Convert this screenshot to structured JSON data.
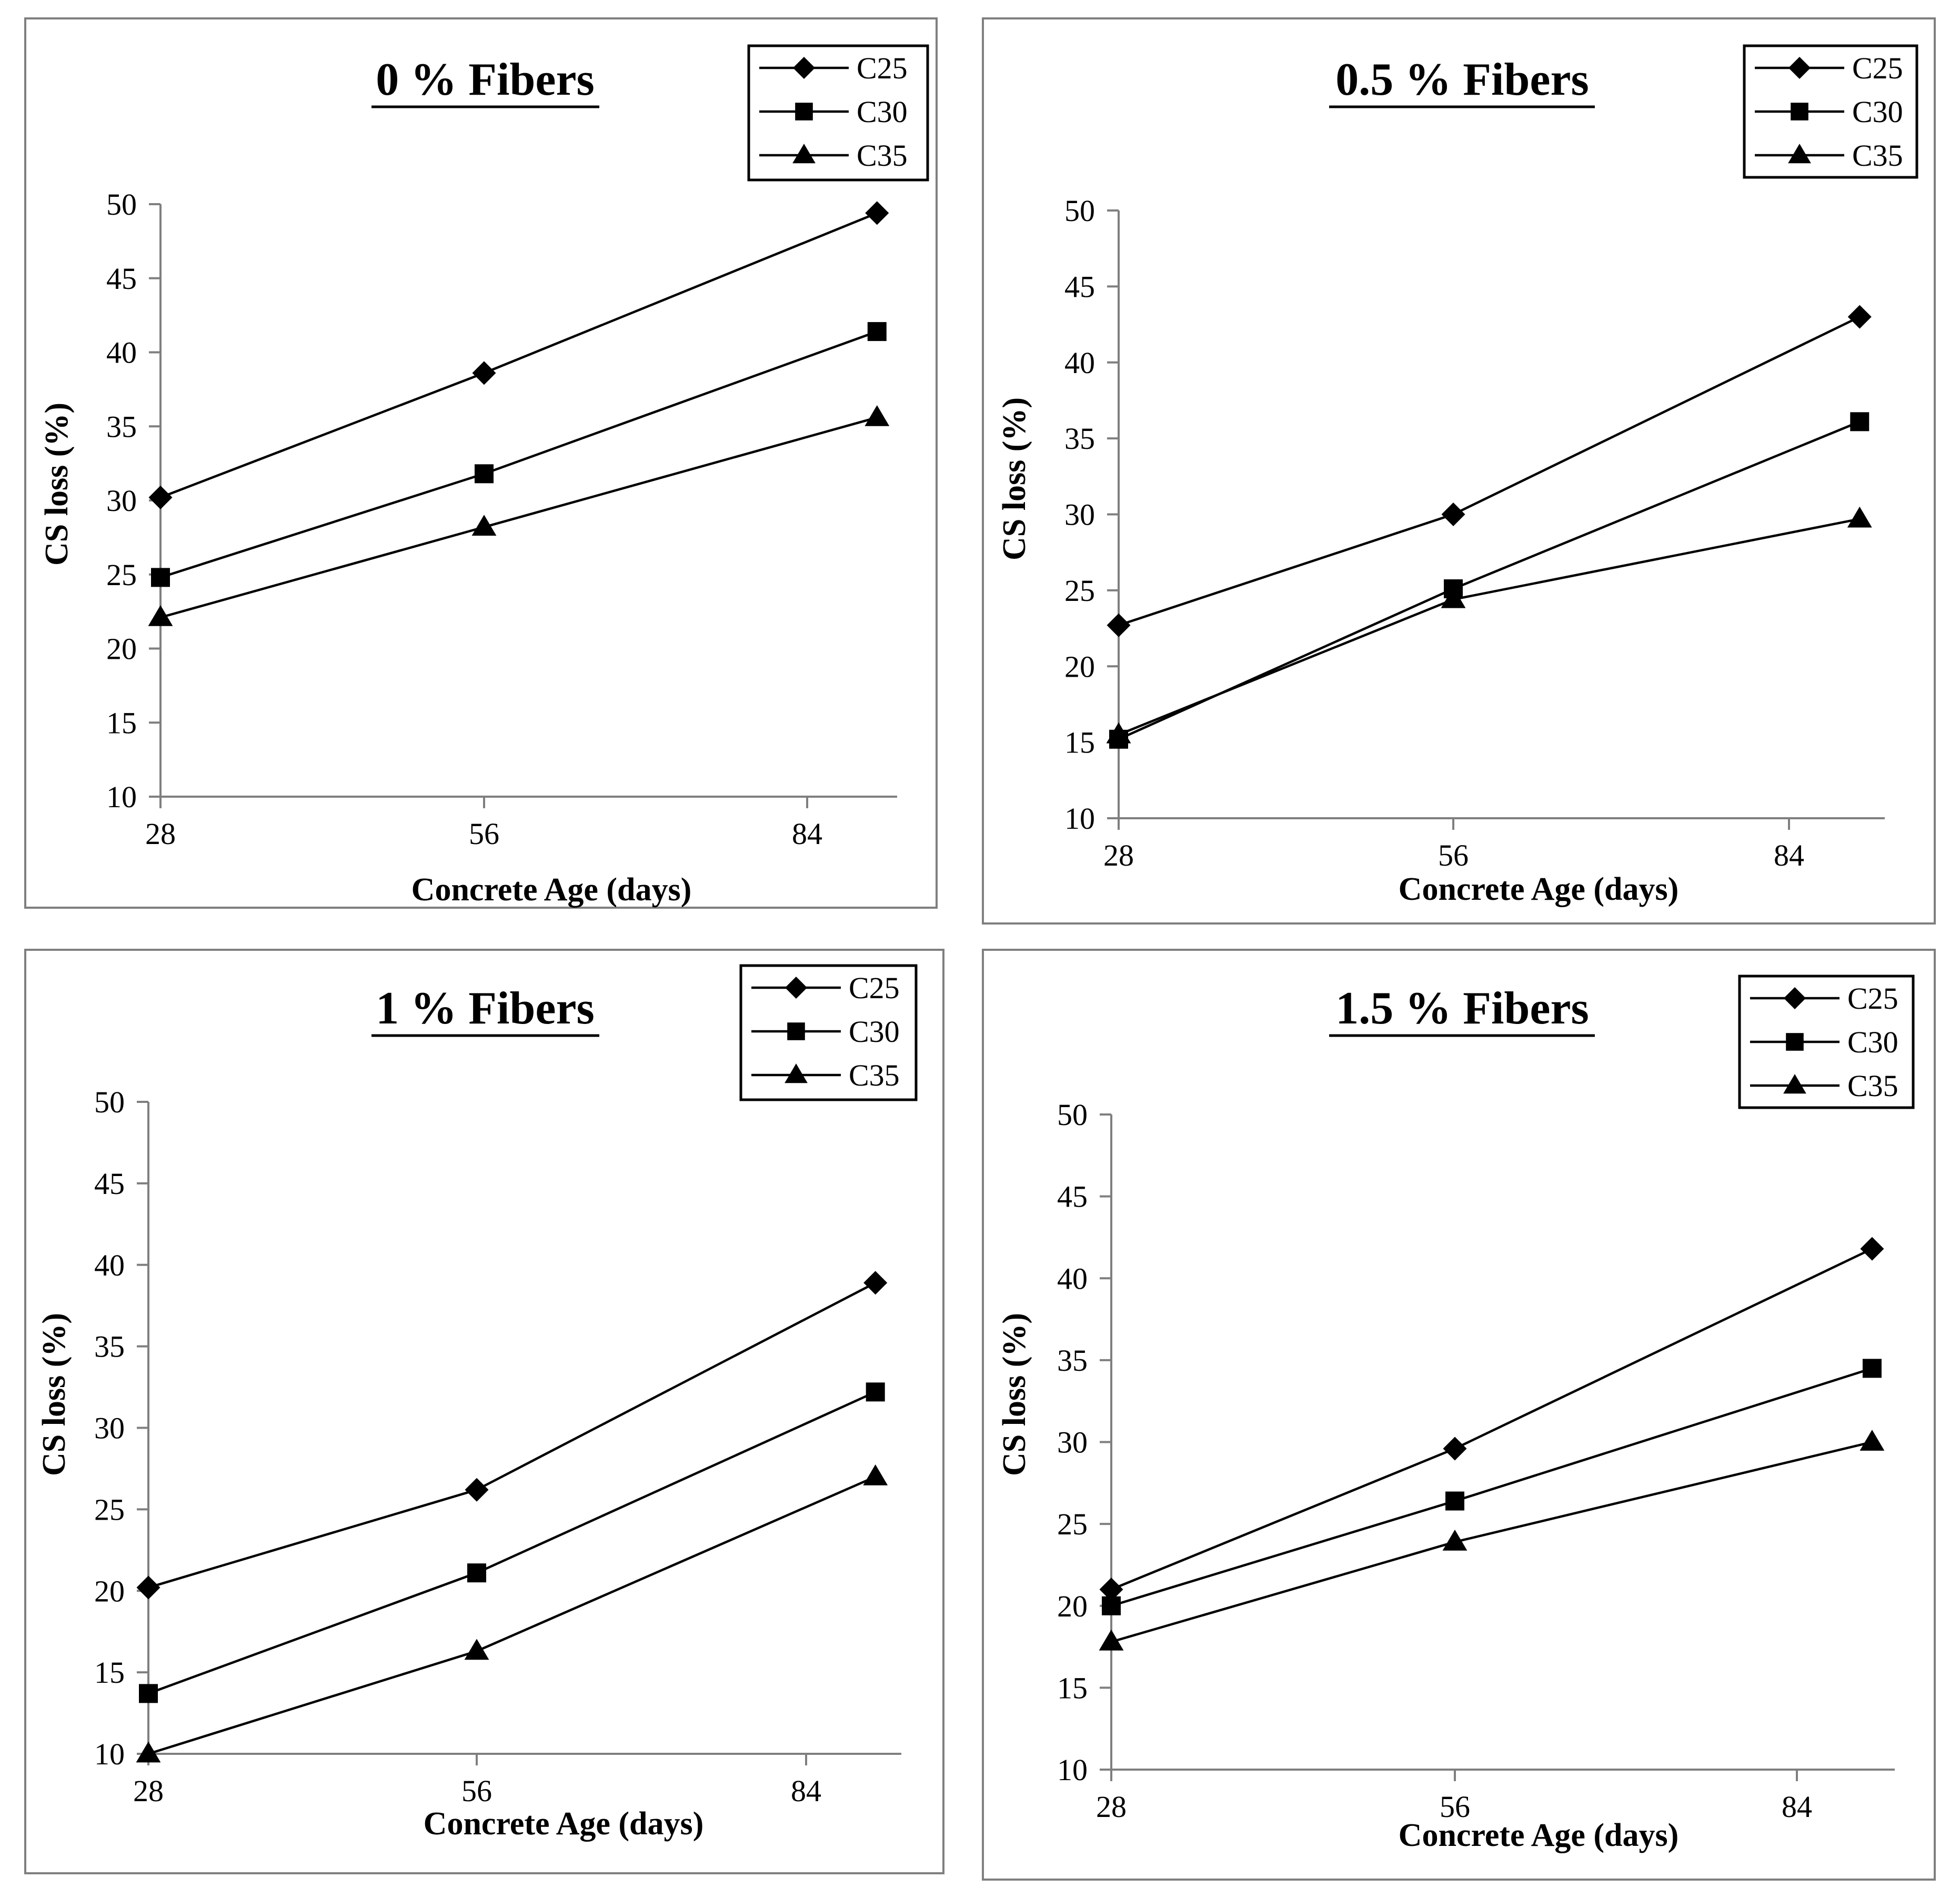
{
  "figure": {
    "panels": [
      "panel_0",
      "panel_05",
      "panel_1",
      "panel_15"
    ]
  },
  "chart_data": [
    {
      "type": "line",
      "title": "0 % Fibers",
      "xlabel": "Concrete Age (days)",
      "ylabel": "CS loss (%)",
      "x": [
        28,
        56,
        90
      ],
      "xticks": [
        "28",
        "56",
        "84"
      ],
      "yticks": [
        "10",
        "15",
        "20",
        "25",
        "30",
        "35",
        "40",
        "45",
        "50"
      ],
      "ylim": [
        10,
        50
      ],
      "legend": "top-right",
      "series": [
        {
          "name": "C25",
          "marker": "diamond",
          "values": [
            30.2,
            38.6,
            49.4
          ]
        },
        {
          "name": "C30",
          "marker": "square",
          "values": [
            24.8,
            31.8,
            41.4
          ]
        },
        {
          "name": "C35",
          "marker": "triangle",
          "values": [
            22.1,
            28.2,
            35.6
          ]
        }
      ]
    },
    {
      "type": "line",
      "title": "0.5 % Fibers",
      "xlabel": "Concrete Age (days)",
      "ylabel": "CS loss (%)",
      "x": [
        28,
        56,
        90
      ],
      "xticks": [
        "28",
        "56",
        "84"
      ],
      "yticks": [
        "10",
        "15",
        "20",
        "25",
        "30",
        "35",
        "40",
        "45",
        "50"
      ],
      "ylim": [
        10,
        50
      ],
      "legend": "top-right",
      "series": [
        {
          "name": "C25",
          "marker": "diamond",
          "values": [
            22.7,
            30.0,
            43.0
          ]
        },
        {
          "name": "C30",
          "marker": "square",
          "values": [
            15.2,
            25.1,
            36.1
          ]
        },
        {
          "name": "C35",
          "marker": "triangle",
          "values": [
            15.5,
            24.4,
            29.7
          ]
        }
      ]
    },
    {
      "type": "line",
      "title": "1 % Fibers",
      "xlabel": "Concrete Age (days)",
      "ylabel": "CS loss (%)",
      "x": [
        28,
        56,
        90
      ],
      "xticks": [
        "28",
        "56",
        "84"
      ],
      "yticks": [
        "10",
        "15",
        "20",
        "25",
        "30",
        "35",
        "40",
        "45",
        "50"
      ],
      "ylim": [
        10,
        50
      ],
      "legend": "top-right",
      "series": [
        {
          "name": "C25",
          "marker": "diamond",
          "values": [
            20.2,
            26.2,
            38.9
          ]
        },
        {
          "name": "C30",
          "marker": "square",
          "values": [
            13.7,
            21.1,
            32.2
          ]
        },
        {
          "name": "C35",
          "marker": "triangle",
          "values": [
            10.0,
            16.3,
            27.0
          ]
        }
      ]
    },
    {
      "type": "line",
      "title": "1.5 % Fibers",
      "xlabel": "Concrete Age (days)",
      "ylabel": "CS loss (%)",
      "x": [
        28,
        56,
        90
      ],
      "xticks": [
        "28",
        "56",
        "84"
      ],
      "yticks": [
        "10",
        "15",
        "20",
        "25",
        "30",
        "35",
        "40",
        "45",
        "50"
      ],
      "ylim": [
        10,
        50
      ],
      "legend": "top-right",
      "series": [
        {
          "name": "C25",
          "marker": "diamond",
          "values": [
            21.0,
            29.6,
            41.8
          ]
        },
        {
          "name": "C30",
          "marker": "square",
          "values": [
            20.0,
            26.4,
            34.5
          ]
        },
        {
          "name": "C35",
          "marker": "triangle",
          "values": [
            17.8,
            23.9,
            30.0
          ]
        }
      ]
    }
  ]
}
